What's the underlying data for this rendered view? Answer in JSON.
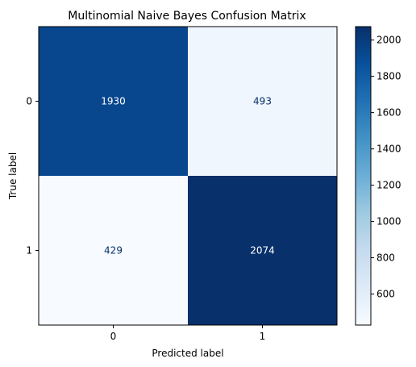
{
  "chart_data": {
    "type": "heatmap",
    "title": "Multinomial Naive Bayes Confusion Matrix",
    "xlabel": "Predicted label",
    "ylabel": "True label",
    "x_categories": [
      "0",
      "1"
    ],
    "y_categories": [
      "0",
      "1"
    ],
    "values": [
      [
        1930,
        493
      ],
      [
        429,
        2074
      ]
    ],
    "colormap": "Blues",
    "colorbar": {
      "range": [
        429,
        2074
      ],
      "ticks": [
        600,
        800,
        1000,
        1200,
        1400,
        1600,
        1800,
        2000
      ],
      "tick_labels": [
        "600",
        "800",
        "1000",
        "1200",
        "1400",
        "1600",
        "1800",
        "2000"
      ]
    },
    "cell_label_colors": {
      "dark_cell": "#ffffff",
      "light_cell": "#08306b"
    }
  }
}
